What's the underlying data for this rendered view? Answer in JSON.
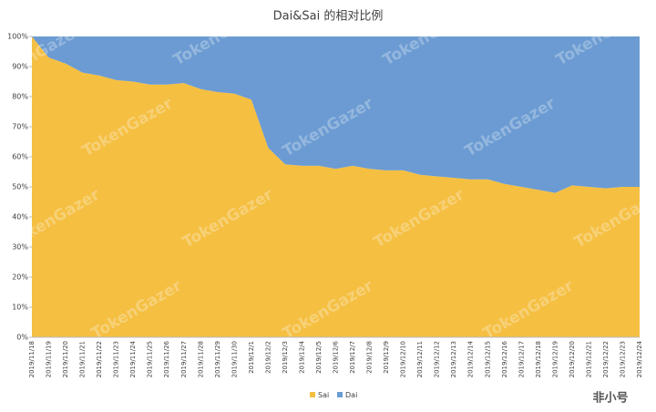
{
  "chart_data": {
    "type": "stacked_area",
    "title": "Dai&Sai 的相对比例",
    "categories": [
      "2019/11/18",
      "2019/11/19",
      "2019/11/20",
      "2019/11/21",
      "2019/11/22",
      "2019/11/23",
      "2019/11/24",
      "2019/11/25",
      "2019/11/26",
      "2019/11/27",
      "2019/11/28",
      "2019/11/29",
      "2019/11/30",
      "2019/12/1",
      "2019/12/2",
      "2019/12/3",
      "2019/12/4",
      "2019/12/5",
      "2019/12/6",
      "2019/12/7",
      "2019/12/8",
      "2019/12/9",
      "2019/12/10",
      "2019/12/11",
      "2019/12/12",
      "2019/12/13",
      "2019/12/14",
      "2019/12/15",
      "2019/12/16",
      "2019/12/17",
      "2019/12/18",
      "2019/12/19",
      "2019/12/20",
      "2019/12/21",
      "2019/12/22",
      "2019/12/23",
      "2019/12/24"
    ],
    "series": [
      {
        "name": "Sai",
        "color": "#f5bf42",
        "values": [
          100,
          93,
          91,
          88,
          87,
          85.5,
          85,
          84,
          84,
          84.5,
          82.5,
          81.5,
          81,
          79,
          63,
          57.5,
          57,
          57,
          56,
          57,
          56,
          55.5,
          55.5,
          54,
          53.5,
          53,
          52.5,
          52.5,
          51,
          50,
          49,
          48,
          50.5,
          50,
          49.5,
          50,
          50
        ]
      },
      {
        "name": "Dai",
        "color": "#6b9bd2",
        "values": [
          0,
          7,
          9,
          12,
          13,
          14.5,
          15,
          16,
          16,
          15.5,
          17.5,
          18.5,
          19,
          21,
          37,
          42.5,
          43,
          43,
          44,
          43,
          44,
          44.5,
          44.5,
          46,
          46.5,
          47,
          47.5,
          47.5,
          49,
          50,
          51,
          52,
          49.5,
          50,
          50.5,
          50,
          50
        ]
      }
    ],
    "ylim": [
      0,
      100
    ],
    "yticks": [
      {
        "value": 0,
        "label": "0%"
      },
      {
        "value": 10,
        "label": "10%"
      },
      {
        "value": 20,
        "label": "20%"
      },
      {
        "value": 30,
        "label": "30%"
      },
      {
        "value": 40,
        "label": "40%"
      },
      {
        "value": 50,
        "label": "50%"
      },
      {
        "value": 60,
        "label": "60%"
      },
      {
        "value": 70,
        "label": "70%"
      },
      {
        "value": 80,
        "label": "80%"
      },
      {
        "value": 90,
        "label": "90%"
      },
      {
        "value": 100,
        "label": "100%"
      }
    ],
    "legend": "bottom",
    "watermark": "TokenGazer",
    "logo": "非小号"
  }
}
